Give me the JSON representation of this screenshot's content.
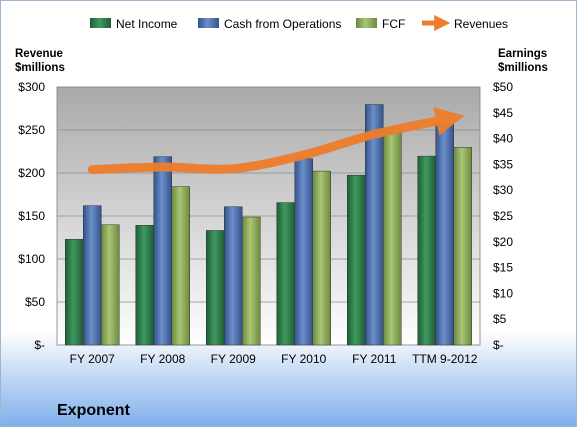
{
  "chart_data": {
    "type": "bar",
    "company": "Exponent",
    "categories": [
      "FY 2007",
      "FY 2008",
      "FY 2009",
      "FY 2010",
      "FY 2011",
      "TTM 9-2012"
    ],
    "series": [
      {
        "name": "Net Income",
        "axis": "right",
        "color": "#2e7d4a",
        "values": [
          20.5,
          23.2,
          22.2,
          27.6,
          32.9,
          36.6
        ]
      },
      {
        "name": "Cash from Operations",
        "axis": "right",
        "color": "#4a6ea8",
        "values": [
          27.0,
          36.5,
          26.8,
          36.1,
          46.6,
          42.9
        ]
      },
      {
        "name": "FCF",
        "axis": "right",
        "color": "#8fae5a",
        "values": [
          23.3,
          30.7,
          24.8,
          33.7,
          42.0,
          38.3
        ]
      },
      {
        "name": "Revenues",
        "axis": "left",
        "type": "line",
        "color": "#f08230",
        "values": [
          204,
          207,
          205,
          221,
          245,
          262
        ]
      }
    ],
    "left_axis": {
      "label_line1": "Revenue",
      "label_line2": "$millions",
      "range": [
        0,
        300
      ],
      "ticks": [
        "$-",
        "$50",
        "$100",
        "$150",
        "$200",
        "$250",
        "$300"
      ]
    },
    "right_axis": {
      "label_line1": "Earnings",
      "label_line2": "$millions",
      "range": [
        0,
        50
      ],
      "ticks": [
        "$-",
        "$5",
        "$10",
        "$15",
        "$20",
        "$25",
        "$30",
        "$35",
        "$40",
        "$45",
        "$50"
      ]
    },
    "grid": true,
    "legend": "top"
  }
}
